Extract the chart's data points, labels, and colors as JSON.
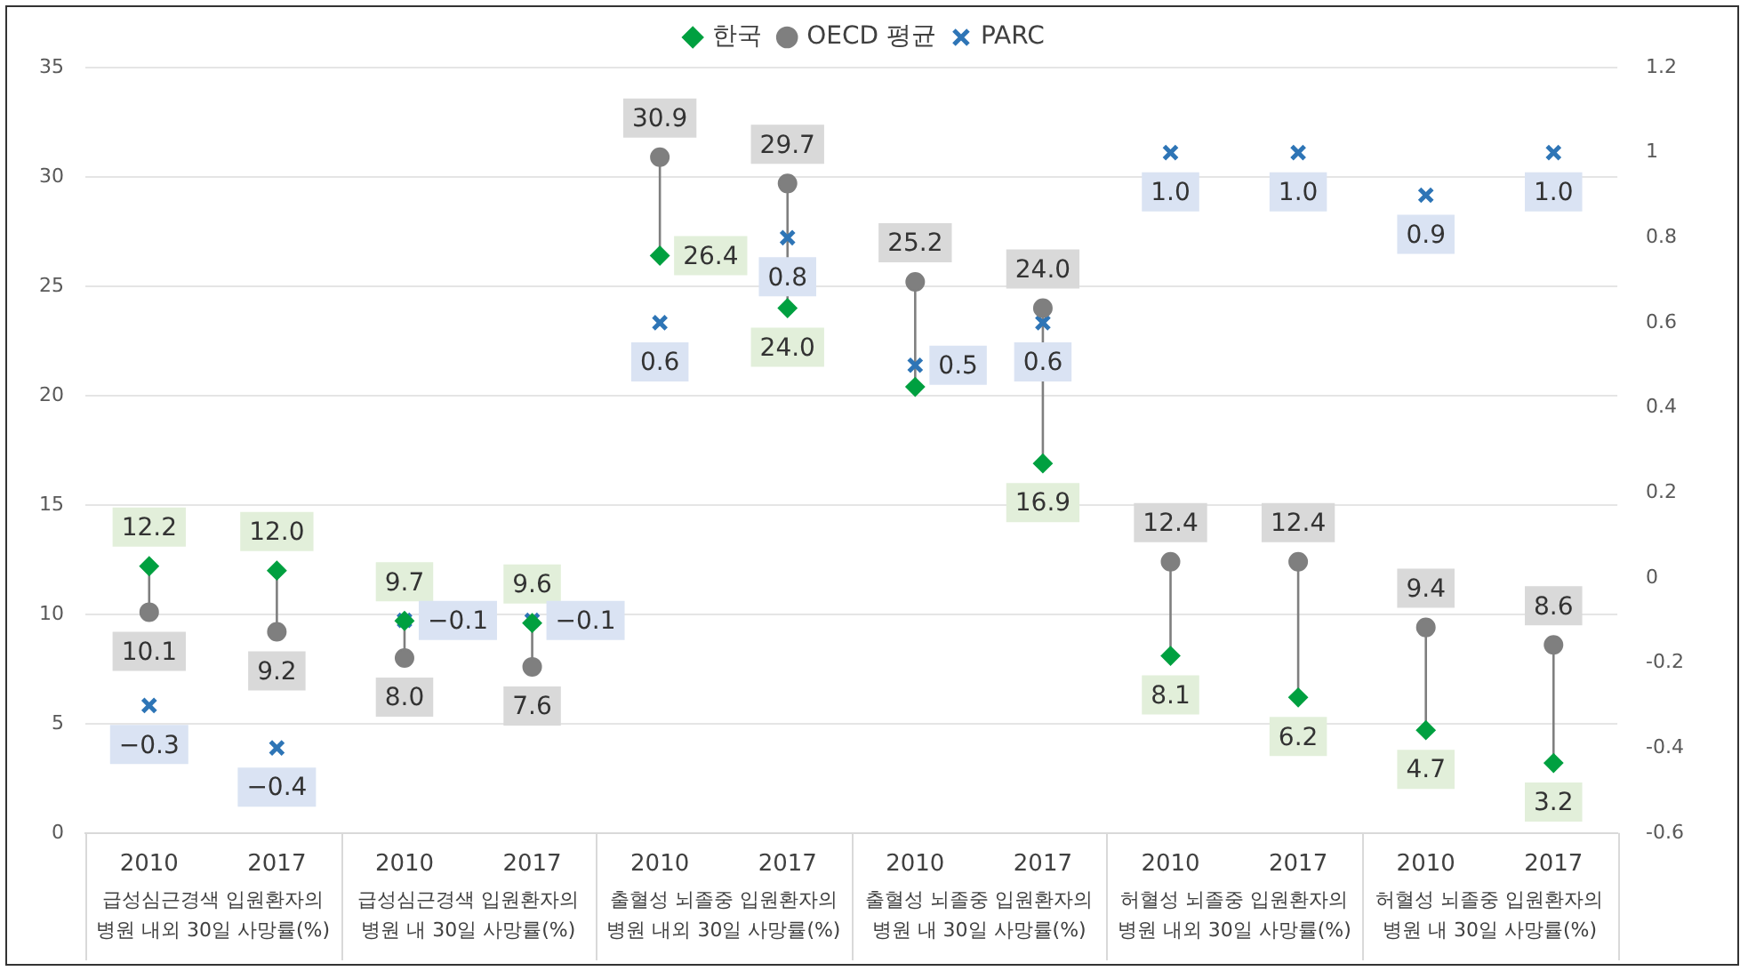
{
  "chart_data": {
    "type": "scatter",
    "categories": [
      "2010",
      "2017",
      "2010",
      "2017",
      "2010",
      "2017",
      "2010",
      "2017",
      "2010",
      "2017",
      "2010",
      "2017"
    ],
    "annotations": [
      "급성심근경색 입원환자의 병원 내외 30일 사망률(%)",
      "급성심근경색 입원환자의 병원 내 30일 사망률(%)",
      "출혈성 뇌졸중 입원환자의 병원 내외 30일 사망률(%)",
      "출혈성 뇌졸중 입원환자의 병원 내 30일 사망률(%)",
      "허혈성 뇌졸중 입원환자의 병원 내외 30일 사망률(%)",
      "허혈성 뇌졸중 입원환자의 병원 내 30일 사망률(%)"
    ],
    "ylim": [
      0,
      35
    ],
    "yticks": [
      0,
      5,
      10,
      15,
      20,
      25,
      30,
      35
    ],
    "y2lim": [
      -0.6,
      1.2
    ],
    "y2ticks": [
      -0.6,
      -0.4,
      -0.2,
      0,
      0.2,
      0.4,
      0.6,
      0.8,
      1,
      1.2
    ],
    "grid": "y",
    "legend": "top",
    "series": [
      {
        "name": "한국",
        "color": "#00a040",
        "marker": "diamond",
        "values": [
          12.2,
          12.0,
          9.7,
          9.6,
          26.4,
          24.0,
          20.4,
          16.9,
          8.1,
          6.2,
          4.7,
          3.2
        ],
        "value_labels": [
          "12.2",
          "12.0",
          "9.7",
          "9.6",
          "26.4",
          "24.0",
          null,
          "16.9",
          "8.1",
          "6.2",
          "4.7",
          "3.2"
        ]
      },
      {
        "name": "OECD 평균",
        "color": "#7f7f7f",
        "marker": "circle",
        "values": [
          10.1,
          9.2,
          8.0,
          7.6,
          30.9,
          29.7,
          25.2,
          24.0,
          12.4,
          12.4,
          9.4,
          8.6
        ],
        "value_labels": [
          "10.1",
          "9.2",
          "8.0",
          "7.6",
          "30.9",
          "29.7",
          "25.2",
          "24.0",
          "12.4",
          "12.4",
          "9.4",
          "8.6"
        ]
      },
      {
        "name": "PARC",
        "color": "#2e75b6",
        "marker": "cross",
        "axis": "y2",
        "values": [
          -0.3,
          -0.4,
          -0.1,
          -0.1,
          0.6,
          0.8,
          0.5,
          0.6,
          1.0,
          1.0,
          0.9,
          1.0
        ],
        "value_labels": [
          "−0.3",
          "−0.4",
          "−0.1",
          "−0.1",
          "0.6",
          "0.8",
          "0.5",
          "0.6",
          "1.0",
          "1.0",
          "0.9",
          "1.0"
        ]
      }
    ]
  }
}
